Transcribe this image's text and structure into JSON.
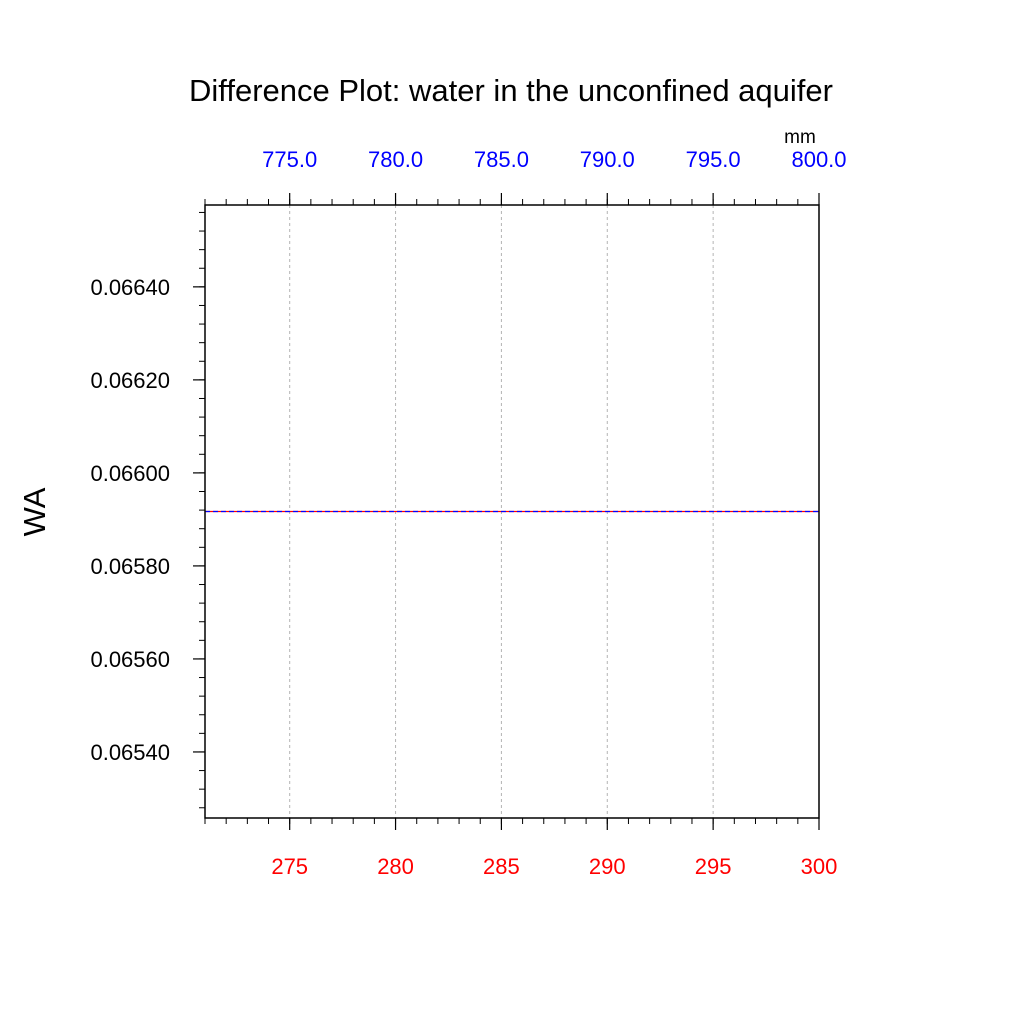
{
  "chart_data": {
    "type": "line",
    "title": "Difference Plot: water in the unconfined aquifer",
    "ylabel": "WA",
    "top_axis_unit": "mm",
    "bottom_axis": {
      "range": [
        271,
        300
      ],
      "ticks": [
        275,
        280,
        285,
        290,
        295,
        300
      ],
      "tick_labels": [
        "275",
        "280",
        "285",
        "290",
        "295",
        "300"
      ],
      "minor_step": 1,
      "label_color": "#ff0000"
    },
    "top_axis": {
      "range": [
        771,
        800
      ],
      "ticks": [
        775,
        780,
        785,
        790,
        795,
        800
      ],
      "tick_labels": [
        "775.0",
        "780.0",
        "785.0",
        "790.0",
        "795.0",
        "800.0"
      ],
      "minor_step": 1,
      "label_color": "#0000ff"
    },
    "y_axis": {
      "range": [
        0.065258,
        0.066576
      ],
      "ticks": [
        0.0654,
        0.0656,
        0.0658,
        0.066,
        0.0662,
        0.0664
      ],
      "tick_labels": [
        "0.06540",
        "0.06560",
        "0.06580",
        "0.06600",
        "0.06620",
        "0.06640"
      ],
      "minor_step": 4e-05
    },
    "grid": {
      "x": true,
      "y": false,
      "style": "dashed"
    },
    "series": [
      {
        "axis": "bottom",
        "color": "#ff0000",
        "style": "solid",
        "x": [
          271,
          300
        ],
        "y": [
          0.065917,
          0.065917
        ]
      },
      {
        "axis": "top",
        "color": "#0000ff",
        "style": "dashed",
        "x": [
          771,
          800
        ],
        "y": [
          0.065917,
          0.065917
        ]
      }
    ]
  }
}
